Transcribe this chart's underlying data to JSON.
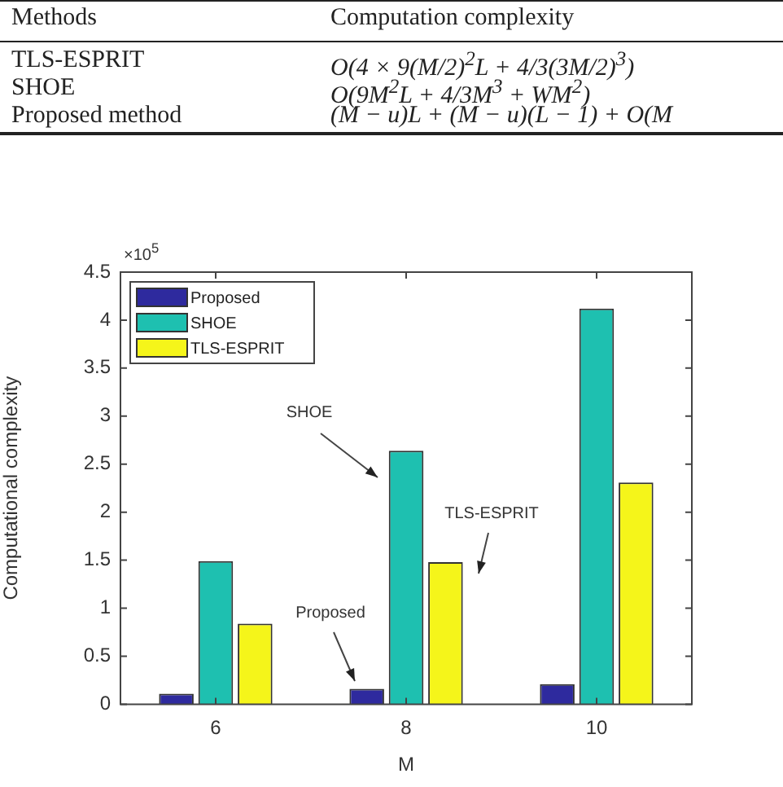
{
  "chart_data": {
    "type": "bar",
    "xlabel": "M",
    "ylabel": "Computational complexity",
    "categories": [
      "6",
      "8",
      "10"
    ],
    "series": [
      {
        "name": "Proposed",
        "color": "#2e2a9e",
        "values": [
          0.11,
          0.16,
          0.21
        ]
      },
      {
        "name": "SHOE",
        "color": "#1ec0b0",
        "values": [
          1.49,
          2.64,
          4.12
        ]
      },
      {
        "name": "TLS-ESPRIT",
        "color": "#f5f51a",
        "values": [
          0.84,
          1.48,
          2.31
        ]
      }
    ],
    "ylim": [
      0,
      4.5
    ],
    "yticks": [
      0,
      0.5,
      1,
      1.5,
      2,
      2.5,
      3,
      3.5,
      4,
      4.5
    ],
    "grid": false,
    "legend": "top left",
    "annotations": [
      "Methods",
      "Computation complexity",
      "TLS-ESPRIT",
      "O(4 × 9(M/2)$^{2}$L + 4/3(3M/2)$^{3}$)",
      "SHOE",
      "O(9M$^{2}$L + 4/3M$^{3}$ + WM$^{2}$)",
      "Proposed method",
      "(M − u)L + (M − u)(L − 1) + O(M",
      "×10$^{5}$",
      "SHOE",
      "Proposed",
      "TLS-ESPRIT"
    ]
  }
}
